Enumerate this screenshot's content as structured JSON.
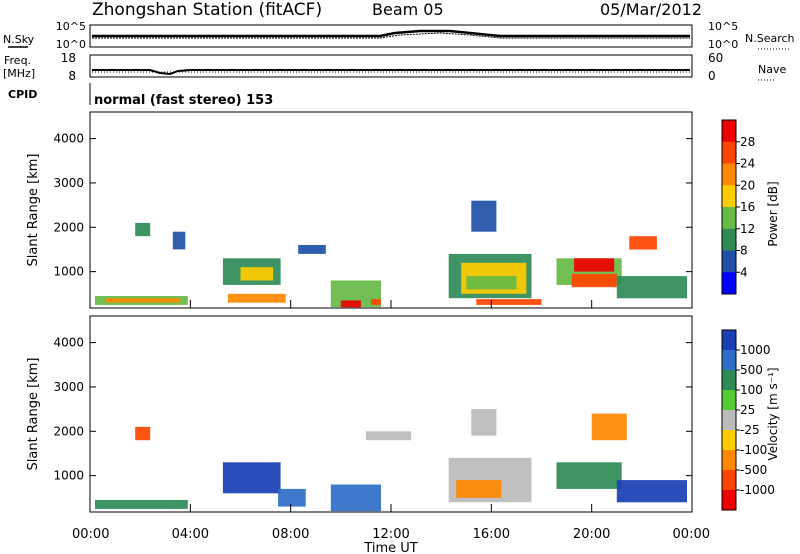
{
  "header": {
    "station": "Zhongshan Station (fitACF)",
    "beam": "Beam 05",
    "date": "05/Mar/2012"
  },
  "top_panels": {
    "nsky_label": "N.Sky",
    "nsearch_label": "N.Search",
    "nsky_ticks": [
      "10^5",
      "10^0"
    ],
    "nsearch_ticks": [
      "10^5",
      "10^0"
    ],
    "freq_label_1": "Freq.",
    "freq_label_2": "[MHz]",
    "freq_ticks": [
      "18",
      "8"
    ],
    "nave_label": "Nave",
    "nave_ticks": [
      "60",
      "0"
    ],
    "cpid_label": "CPID",
    "cpid_text": "normal (fast stereo) 153"
  },
  "colors": {
    "power_scale": [
      "#0000ff",
      "#1f4fa8",
      "#2e8b57",
      "#66bb44",
      "#ffcc00",
      "#ff8800",
      "#ff4400",
      "#ee0000"
    ],
    "velocity_scale": [
      "#1a3fb5",
      "#2e6ec8",
      "#2e8b57",
      "#55cc33",
      "#bbbbbb",
      "#ffcc00",
      "#ff8800",
      "#ff4400",
      "#ee0000"
    ]
  },
  "chart_data": [
    {
      "type": "heatmap",
      "name": "power",
      "ylabel": "Slant Range [km]",
      "ylim": [
        180,
        4600
      ],
      "yticks": [
        "4000",
        "3000",
        "2000",
        "1000"
      ],
      "colorbar_label": "Power [dB]",
      "colorbar_ticks": [
        "28",
        "24",
        "20",
        "16",
        "12",
        "8",
        "4"
      ],
      "regions": [
        {
          "t0": 0.2,
          "t1": 3.9,
          "r0": 250,
          "r1": 450,
          "level": 3
        },
        {
          "t0": 0.6,
          "t1": 3.6,
          "r0": 300,
          "r1": 400,
          "level": 5
        },
        {
          "t0": 1.8,
          "t1": 2.4,
          "r0": 1800,
          "r1": 2100,
          "level": 2
        },
        {
          "t0": 3.3,
          "t1": 3.8,
          "r0": 1500,
          "r1": 1900,
          "level": 1
        },
        {
          "t0": 5.3,
          "t1": 7.6,
          "r0": 700,
          "r1": 1300,
          "level": 2
        },
        {
          "t0": 6.0,
          "t1": 7.3,
          "r0": 800,
          "r1": 1100,
          "level": 4
        },
        {
          "t0": 5.5,
          "t1": 7.8,
          "r0": 300,
          "r1": 500,
          "level": 5
        },
        {
          "t0": 8.3,
          "t1": 9.4,
          "r0": 1400,
          "r1": 1600,
          "level": 1
        },
        {
          "t0": 9.6,
          "t1": 11.6,
          "r0": 200,
          "r1": 800,
          "level": 3
        },
        {
          "t0": 10.0,
          "t1": 10.8,
          "r0": 200,
          "r1": 350,
          "level": 7
        },
        {
          "t0": 11.2,
          "t1": 11.6,
          "r0": 250,
          "r1": 380,
          "level": 6
        },
        {
          "t0": 14.3,
          "t1": 17.6,
          "r0": 400,
          "r1": 1400,
          "level": 2
        },
        {
          "t0": 14.8,
          "t1": 17.4,
          "r0": 500,
          "r1": 1200,
          "level": 4
        },
        {
          "t0": 15.0,
          "t1": 17.0,
          "r0": 600,
          "r1": 900,
          "level": 3
        },
        {
          "t0": 15.2,
          "t1": 16.2,
          "r0": 1900,
          "r1": 2600,
          "level": 1
        },
        {
          "t0": 15.4,
          "t1": 18.0,
          "r0": 250,
          "r1": 380,
          "level": 6
        },
        {
          "t0": 18.6,
          "t1": 21.2,
          "r0": 700,
          "r1": 1300,
          "level": 3
        },
        {
          "t0": 19.2,
          "t1": 21.0,
          "r0": 650,
          "r1": 950,
          "level": 6
        },
        {
          "t0": 19.3,
          "t1": 20.9,
          "r0": 1000,
          "r1": 1300,
          "level": 7
        },
        {
          "t0": 21.0,
          "t1": 23.8,
          "r0": 400,
          "r1": 900,
          "level": 2
        },
        {
          "t0": 21.5,
          "t1": 22.6,
          "r0": 1500,
          "r1": 1800,
          "level": 6
        }
      ]
    },
    {
      "type": "heatmap",
      "name": "velocity",
      "ylabel": "Slant Range [km]",
      "ylim": [
        180,
        4600
      ],
      "yticks": [
        "4000",
        "3000",
        "2000",
        "1000"
      ],
      "colorbar_label": "Velocity [m s⁻¹]",
      "colorbar_ticks": [
        "1000",
        "500",
        "100",
        "25",
        "-25",
        "-100",
        "-500",
        "-1000"
      ],
      "regions": [
        {
          "t0": 0.2,
          "t1": 3.9,
          "r0": 250,
          "r1": 450,
          "level": 2
        },
        {
          "t0": 1.8,
          "t1": 2.4,
          "r0": 1800,
          "r1": 2100,
          "level": 7
        },
        {
          "t0": 5.3,
          "t1": 7.6,
          "r0": 600,
          "r1": 1300,
          "level": 0
        },
        {
          "t0": 7.5,
          "t1": 8.6,
          "r0": 300,
          "r1": 700,
          "level": 1
        },
        {
          "t0": 9.6,
          "t1": 11.6,
          "r0": 200,
          "r1": 800,
          "level": 1
        },
        {
          "t0": 11.0,
          "t1": 12.8,
          "r0": 1800,
          "r1": 2000,
          "level": 4
        },
        {
          "t0": 14.3,
          "t1": 17.6,
          "r0": 400,
          "r1": 1400,
          "level": 4
        },
        {
          "t0": 14.6,
          "t1": 16.4,
          "r0": 500,
          "r1": 900,
          "level": 6
        },
        {
          "t0": 15.2,
          "t1": 16.2,
          "r0": 1900,
          "r1": 2500,
          "level": 4
        },
        {
          "t0": 18.6,
          "t1": 21.2,
          "r0": 700,
          "r1": 1300,
          "level": 2
        },
        {
          "t0": 21.0,
          "t1": 23.8,
          "r0": 400,
          "r1": 900,
          "level": 0
        },
        {
          "t0": 20.0,
          "t1": 21.4,
          "r0": 1800,
          "r1": 2400,
          "level": 6
        }
      ]
    }
  ],
  "xaxis": {
    "label": "Time UT",
    "ticks": [
      "00:00",
      "04:00",
      "08:00",
      "12:00",
      "16:00",
      "20:00",
      "00:00"
    ],
    "range": [
      0,
      24
    ]
  }
}
